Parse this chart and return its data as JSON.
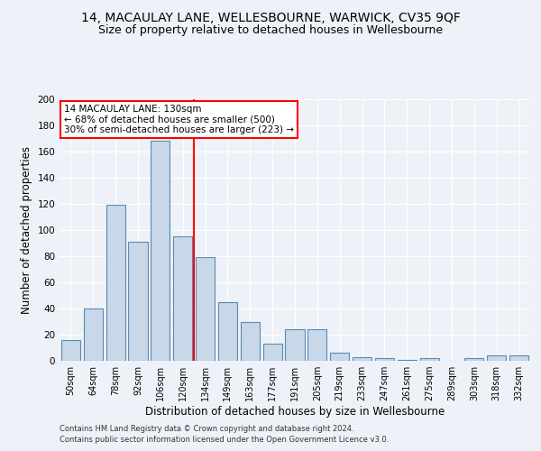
{
  "title1": "14, MACAULAY LANE, WELLESBOURNE, WARWICK, CV35 9QF",
  "title2": "Size of property relative to detached houses in Wellesbourne",
  "xlabel": "Distribution of detached houses by size in Wellesbourne",
  "ylabel": "Number of detached properties",
  "footer1": "Contains HM Land Registry data © Crown copyright and database right 2024.",
  "footer2": "Contains public sector information licensed under the Open Government Licence v3.0.",
  "categories": [
    "50sqm",
    "64sqm",
    "78sqm",
    "92sqm",
    "106sqm",
    "120sqm",
    "134sqm",
    "149sqm",
    "163sqm",
    "177sqm",
    "191sqm",
    "205sqm",
    "219sqm",
    "233sqm",
    "247sqm",
    "261sqm",
    "275sqm",
    "289sqm",
    "303sqm",
    "318sqm",
    "332sqm"
  ],
  "values": [
    16,
    40,
    119,
    91,
    168,
    95,
    79,
    45,
    30,
    13,
    24,
    24,
    6,
    3,
    2,
    1,
    2,
    0,
    2,
    4,
    4
  ],
  "bar_color": "#c8d8e8",
  "bar_edge_color": "#5a8ab5",
  "vline_x": 5.5,
  "vline_color": "red",
  "annotation_title": "14 MACAULAY LANE: 130sqm",
  "annotation_line1": "← 68% of detached houses are smaller (500)",
  "annotation_line2": "30% of semi-detached houses are larger (223) →",
  "annotation_box_color": "white",
  "annotation_box_edge_color": "red",
  "ylim": [
    0,
    200
  ],
  "yticks": [
    0,
    20,
    40,
    60,
    80,
    100,
    120,
    140,
    160,
    180,
    200
  ],
  "background_color": "#eef2f8",
  "plot_background_color": "#eef2f8",
  "title1_fontsize": 10,
  "title2_fontsize": 9,
  "xlabel_fontsize": 8.5,
  "ylabel_fontsize": 8.5,
  "annotation_fontsize": 7.5,
  "tick_fontsize": 7,
  "ytick_fontsize": 7.5,
  "footer_fontsize": 6.0
}
